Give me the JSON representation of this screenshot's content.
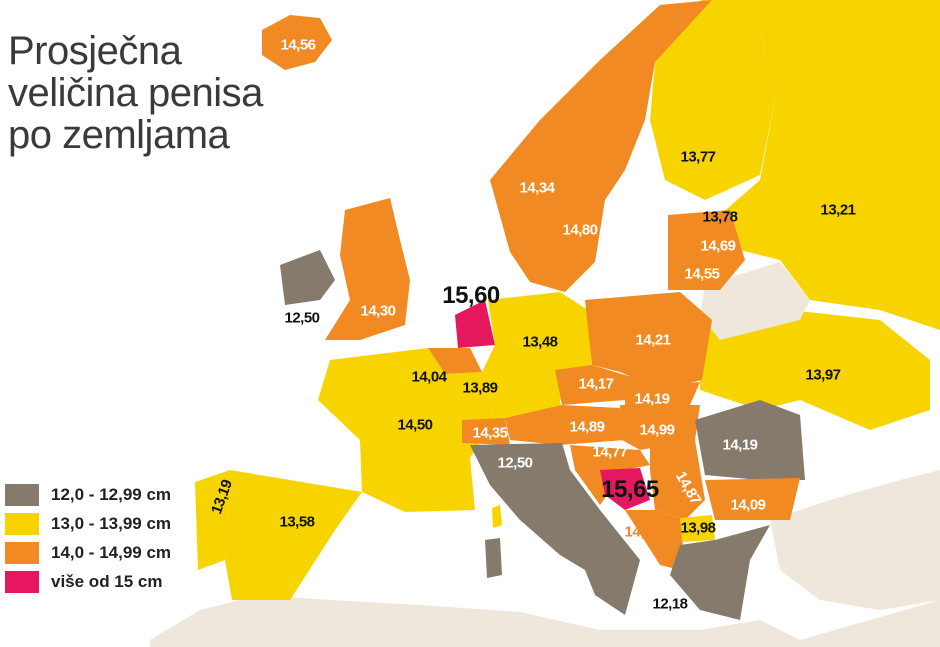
{
  "title": {
    "lines": [
      "Prosječna",
      "veličina penisa",
      "po zemljama"
    ]
  },
  "colors": {
    "gray": "#857a6b",
    "yellow": "#f7d400",
    "orange": "#f18a22",
    "pink": "#e5175f",
    "no_data": "#efe6dc",
    "sea": "#ffffff"
  },
  "legend": [
    {
      "label": "12,0 - 12,99 cm",
      "color": "#857a6b"
    },
    {
      "label": "13,0 - 13,99 cm",
      "color": "#f7d400"
    },
    {
      "label": "14,0 - 14,99 cm",
      "color": "#f18a22"
    },
    {
      "label": "više od 15 cm",
      "color": "#e5175f"
    }
  ],
  "values": {
    "iceland": "14,56",
    "norway": "14,34",
    "sweden": "14,80",
    "finland": "13,77",
    "russia": "13,21",
    "estonia": "13,78",
    "latvia": "14,69",
    "lithuania": "14,55",
    "ireland": "12,50",
    "uk": "14,30",
    "netherlands": "15,60",
    "belgium": "14,04",
    "germany": "13,48",
    "luxembourg": "13,89",
    "poland": "14,21",
    "ukraine": "13,97",
    "france": "14,50",
    "czech": "14,17",
    "slovakia": "14,19",
    "switzerland": "14,35",
    "austria": "14,89",
    "hungary": "14,99",
    "romania": "14,19",
    "italy": "12,50",
    "croatia": "14,77",
    "bosnia": "15,65",
    "serbia": "14,87",
    "bulgaria": "14,09",
    "montenegro": "14,19",
    "macedonia": "13,98",
    "greece": "12,18",
    "portugal": "13,19",
    "spain": "13,58"
  }
}
